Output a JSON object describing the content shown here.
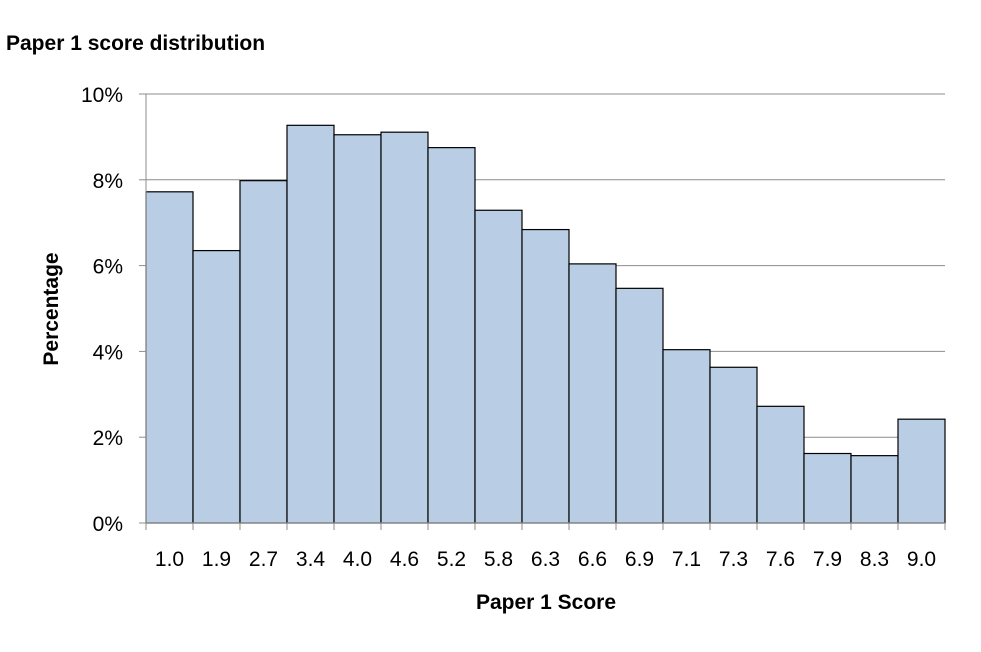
{
  "chart_data": {
    "type": "bar",
    "title": "Paper 1 score distribution",
    "xlabel": "Paper 1 Score",
    "ylabel": "Percentage",
    "categories": [
      "1.0",
      "1.9",
      "2.7",
      "3.4",
      "4.0",
      "4.6",
      "5.2",
      "5.8",
      "6.3",
      "6.6",
      "6.9",
      "7.1",
      "7.3",
      "7.6",
      "7.9",
      "8.3",
      "9.0"
    ],
    "values": [
      7.72,
      6.35,
      7.98,
      9.27,
      9.05,
      9.11,
      8.75,
      7.29,
      6.84,
      6.04,
      5.47,
      4.04,
      3.63,
      2.72,
      1.62,
      1.57,
      2.42
    ],
    "ylim": [
      0,
      10
    ],
    "yticks": [
      0,
      2,
      4,
      6,
      8,
      10
    ],
    "ytick_labels": [
      "0%",
      "2%",
      "4%",
      "6%",
      "8%",
      "10%"
    ],
    "grid": true,
    "bar_color": "#b9cde5",
    "bar_edge_color": "#000000",
    "grid_color": "#8c8c8c"
  }
}
